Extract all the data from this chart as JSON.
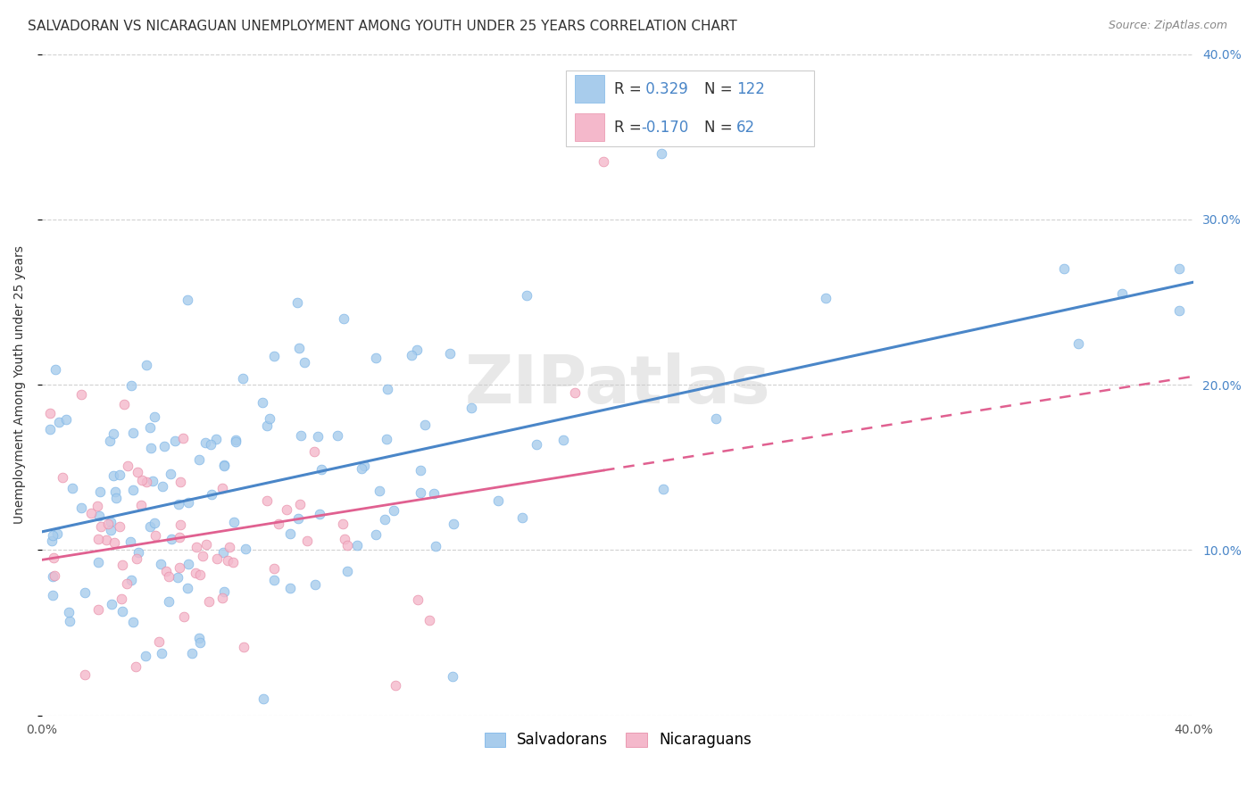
{
  "title": "SALVADORAN VS NICARAGUAN UNEMPLOYMENT AMONG YOUTH UNDER 25 YEARS CORRELATION CHART",
  "source": "Source: ZipAtlas.com",
  "ylabel": "Unemployment Among Youth under 25 years",
  "xlim": [
    0.0,
    0.4
  ],
  "ylim": [
    0.0,
    0.4
  ],
  "x_ticks": [
    0.0,
    0.05,
    0.1,
    0.15,
    0.2,
    0.25,
    0.3,
    0.35,
    0.4
  ],
  "y_ticks": [
    0.0,
    0.1,
    0.2,
    0.3,
    0.4
  ],
  "salvadoran_color": "#A8CCEC",
  "salvadoran_edge_color": "#7EB6E8",
  "nicaraguan_color": "#F4B8CB",
  "nicaraguan_edge_color": "#E890AA",
  "salvadoran_line_color": "#4A86C8",
  "nicaraguan_line_color": "#E06090",
  "R_salvadoran": 0.329,
  "N_salvadoran": 122,
  "R_nicaraguan": -0.17,
  "N_nicaraguan": 62,
  "watermark": "ZIPatlas",
  "background_color": "#ffffff",
  "grid_color": "#cccccc",
  "legend_labels": [
    "Salvadorans",
    "Nicaraguans"
  ],
  "title_fontsize": 11,
  "axis_fontsize": 10,
  "right_tick_color": "#4A86C8"
}
